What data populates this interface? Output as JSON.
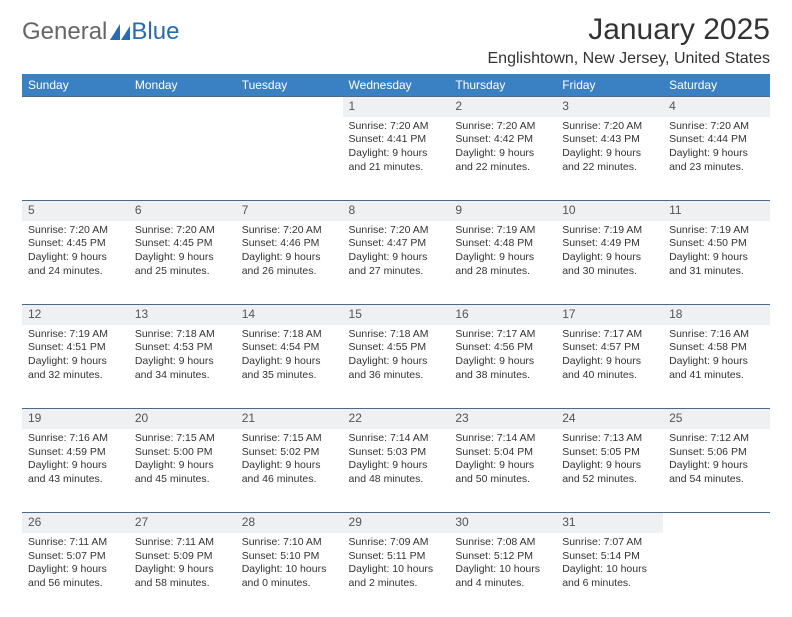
{
  "brand": {
    "general": "General",
    "blue": "Blue"
  },
  "title": "January 2025",
  "location": "Englishtown, New Jersey, United States",
  "colors": {
    "header_bg": "#3a81c4",
    "header_text": "#ffffff",
    "daynum_bg": "#eef0f2",
    "row_divider": "#4a6a8a",
    "text": "#333333",
    "logo_accent": "#2a6ab0"
  },
  "weekday_labels": [
    "Sunday",
    "Monday",
    "Tuesday",
    "Wednesday",
    "Thursday",
    "Friday",
    "Saturday"
  ],
  "weeks": [
    {
      "nums": [
        "",
        "",
        "",
        "1",
        "2",
        "3",
        "4"
      ],
      "cells": [
        "",
        "",
        "",
        "Sunrise: 7:20 AM\nSunset: 4:41 PM\nDaylight: 9 hours and 21 minutes.",
        "Sunrise: 7:20 AM\nSunset: 4:42 PM\nDaylight: 9 hours and 22 minutes.",
        "Sunrise: 7:20 AM\nSunset: 4:43 PM\nDaylight: 9 hours and 22 minutes.",
        "Sunrise: 7:20 AM\nSunset: 4:44 PM\nDaylight: 9 hours and 23 minutes."
      ]
    },
    {
      "nums": [
        "5",
        "6",
        "7",
        "8",
        "9",
        "10",
        "11"
      ],
      "cells": [
        "Sunrise: 7:20 AM\nSunset: 4:45 PM\nDaylight: 9 hours and 24 minutes.",
        "Sunrise: 7:20 AM\nSunset: 4:45 PM\nDaylight: 9 hours and 25 minutes.",
        "Sunrise: 7:20 AM\nSunset: 4:46 PM\nDaylight: 9 hours and 26 minutes.",
        "Sunrise: 7:20 AM\nSunset: 4:47 PM\nDaylight: 9 hours and 27 minutes.",
        "Sunrise: 7:19 AM\nSunset: 4:48 PM\nDaylight: 9 hours and 28 minutes.",
        "Sunrise: 7:19 AM\nSunset: 4:49 PM\nDaylight: 9 hours and 30 minutes.",
        "Sunrise: 7:19 AM\nSunset: 4:50 PM\nDaylight: 9 hours and 31 minutes."
      ]
    },
    {
      "nums": [
        "12",
        "13",
        "14",
        "15",
        "16",
        "17",
        "18"
      ],
      "cells": [
        "Sunrise: 7:19 AM\nSunset: 4:51 PM\nDaylight: 9 hours and 32 minutes.",
        "Sunrise: 7:18 AM\nSunset: 4:53 PM\nDaylight: 9 hours and 34 minutes.",
        "Sunrise: 7:18 AM\nSunset: 4:54 PM\nDaylight: 9 hours and 35 minutes.",
        "Sunrise: 7:18 AM\nSunset: 4:55 PM\nDaylight: 9 hours and 36 minutes.",
        "Sunrise: 7:17 AM\nSunset: 4:56 PM\nDaylight: 9 hours and 38 minutes.",
        "Sunrise: 7:17 AM\nSunset: 4:57 PM\nDaylight: 9 hours and 40 minutes.",
        "Sunrise: 7:16 AM\nSunset: 4:58 PM\nDaylight: 9 hours and 41 minutes."
      ]
    },
    {
      "nums": [
        "19",
        "20",
        "21",
        "22",
        "23",
        "24",
        "25"
      ],
      "cells": [
        "Sunrise: 7:16 AM\nSunset: 4:59 PM\nDaylight: 9 hours and 43 minutes.",
        "Sunrise: 7:15 AM\nSunset: 5:00 PM\nDaylight: 9 hours and 45 minutes.",
        "Sunrise: 7:15 AM\nSunset: 5:02 PM\nDaylight: 9 hours and 46 minutes.",
        "Sunrise: 7:14 AM\nSunset: 5:03 PM\nDaylight: 9 hours and 48 minutes.",
        "Sunrise: 7:14 AM\nSunset: 5:04 PM\nDaylight: 9 hours and 50 minutes.",
        "Sunrise: 7:13 AM\nSunset: 5:05 PM\nDaylight: 9 hours and 52 minutes.",
        "Sunrise: 7:12 AM\nSunset: 5:06 PM\nDaylight: 9 hours and 54 minutes."
      ]
    },
    {
      "nums": [
        "26",
        "27",
        "28",
        "29",
        "30",
        "31",
        ""
      ],
      "cells": [
        "Sunrise: 7:11 AM\nSunset: 5:07 PM\nDaylight: 9 hours and 56 minutes.",
        "Sunrise: 7:11 AM\nSunset: 5:09 PM\nDaylight: 9 hours and 58 minutes.",
        "Sunrise: 7:10 AM\nSunset: 5:10 PM\nDaylight: 10 hours and 0 minutes.",
        "Sunrise: 7:09 AM\nSunset: 5:11 PM\nDaylight: 10 hours and 2 minutes.",
        "Sunrise: 7:08 AM\nSunset: 5:12 PM\nDaylight: 10 hours and 4 minutes.",
        "Sunrise: 7:07 AM\nSunset: 5:14 PM\nDaylight: 10 hours and 6 minutes.",
        ""
      ]
    }
  ]
}
